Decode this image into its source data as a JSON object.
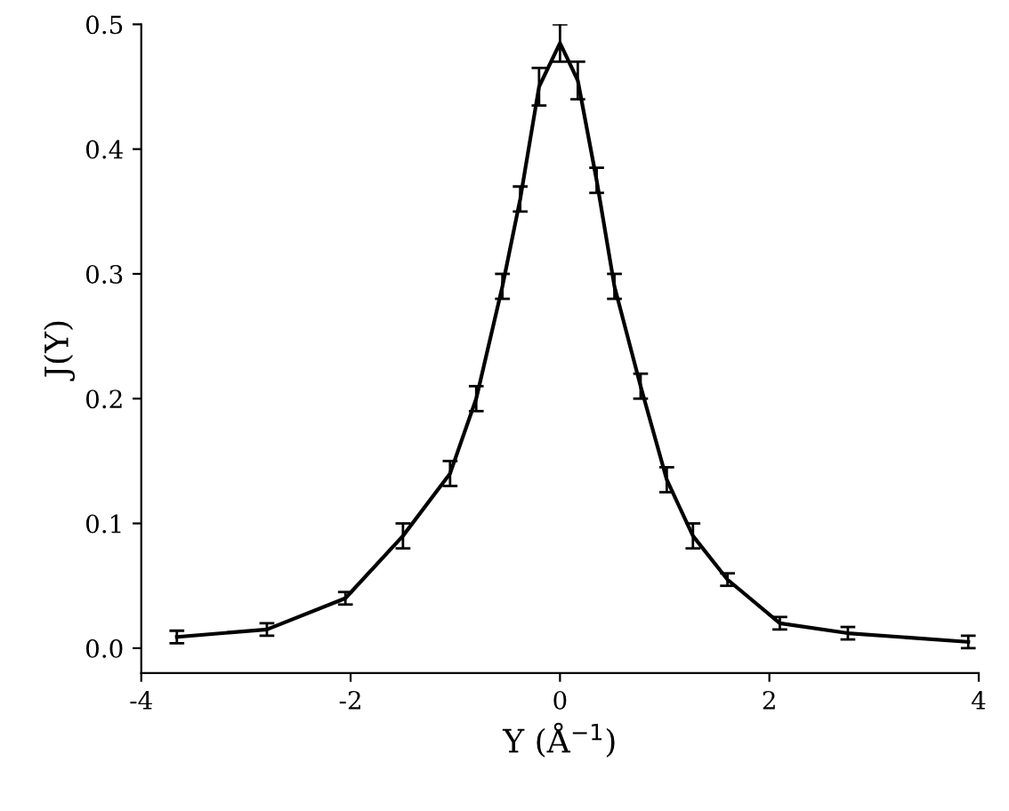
{
  "chart_data": {
    "type": "line",
    "xlabel": "Y (Å$^{−1}$)",
    "ylabel": "J(Y)",
    "x": [
      -3.66,
      -2.8,
      -2.05,
      -1.5,
      -1.05,
      -0.8,
      -0.55,
      -0.38,
      -0.2,
      0,
      0.17,
      0.35,
      0.52,
      0.77,
      1.02,
      1.27,
      1.6,
      2.1,
      2.75,
      3.9
    ],
    "series": [
      {
        "color": "#000000",
        "values": [
          0.009,
          0.015,
          0.04,
          0.09,
          0.14,
          0.2,
          0.29,
          0.36,
          0.45,
          0.485,
          0.455,
          0.375,
          0.29,
          0.21,
          0.135,
          0.09,
          0.055,
          0.02,
          0.012,
          0.005
        ],
        "errors": [
          0.005,
          0.005,
          0.005,
          0.01,
          0.01,
          0.01,
          0.01,
          0.01,
          0.015,
          0.015,
          0.015,
          0.01,
          0.01,
          0.01,
          0.01,
          0.01,
          0.005,
          0.005,
          0.005,
          0.005
        ]
      }
    ],
    "xlim": [
      -4,
      4
    ],
    "xticks": [
      -4,
      -2,
      0,
      2,
      4
    ],
    "ylim": [
      -0.02,
      0.5
    ],
    "yticks": [
      {
        "value": 0,
        "label": "0.0"
      },
      {
        "value": 0.1,
        "label": "0.1"
      },
      {
        "value": 0.2,
        "label": "0.2"
      },
      {
        "value": 0.3,
        "label": "0.3"
      },
      {
        "value": 0.4,
        "label": "0.4"
      },
      {
        "value": 0.5,
        "label": "0.5"
      }
    ],
    "line_style": "solid",
    "marker": "none",
    "grid": false
  }
}
